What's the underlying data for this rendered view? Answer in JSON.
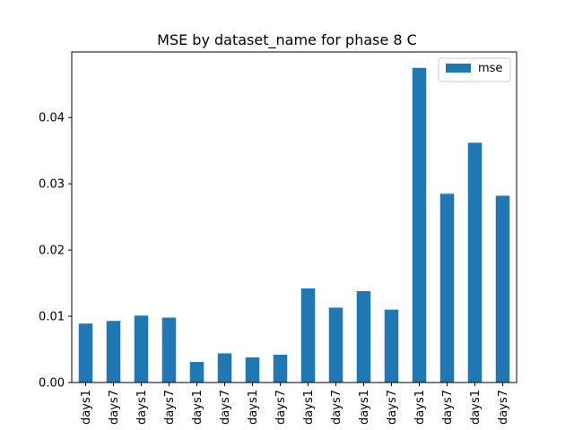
{
  "chart_data": {
    "type": "bar",
    "title": "MSE by dataset_name for phase 8 C",
    "xlabel": "",
    "ylabel": "",
    "categories": [
      "days1",
      "days7",
      "days1",
      "days7",
      "days1",
      "days7",
      "days1",
      "days7",
      "days1",
      "days7",
      "days1",
      "days7",
      "days1",
      "days7",
      "days1",
      "days7"
    ],
    "series": [
      {
        "name": "mse",
        "color": "#1f77b4",
        "values": [
          0.0089,
          0.0093,
          0.0101,
          0.0098,
          0.0031,
          0.0044,
          0.0038,
          0.0042,
          0.0142,
          0.0113,
          0.0138,
          0.011,
          0.0475,
          0.0285,
          0.0362,
          0.0282
        ]
      }
    ],
    "ylim": [
      0,
      0.0499
    ],
    "yticks": [
      0.0,
      0.01,
      0.02,
      0.03,
      0.04
    ],
    "ytick_labels": [
      "0.00",
      "0.01",
      "0.02",
      "0.03",
      "0.04"
    ],
    "grid": false,
    "legend_position": "top-right"
  }
}
